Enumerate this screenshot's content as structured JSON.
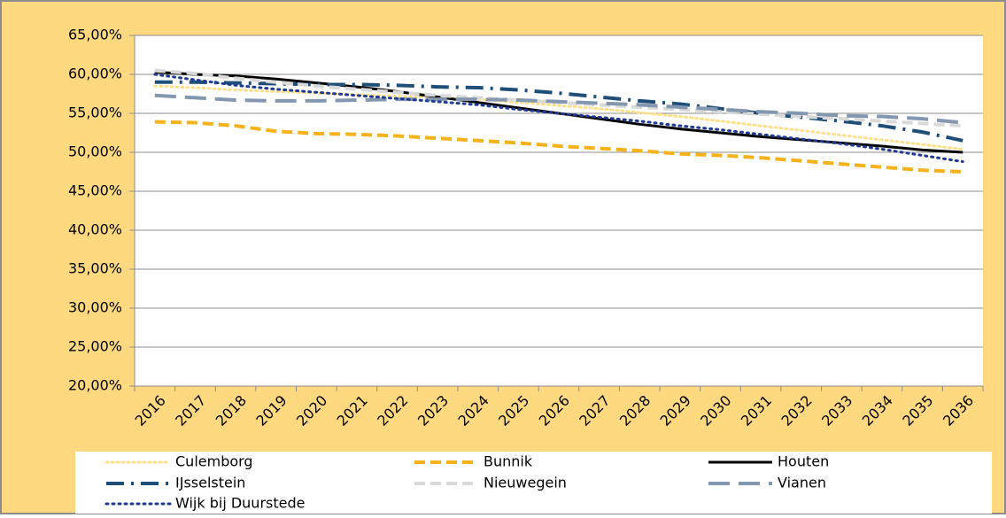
{
  "chart_data": {
    "type": "line",
    "categories": [
      "2016",
      "2017",
      "2018",
      "2019",
      "2020",
      "2021",
      "2022",
      "2023",
      "2024",
      "2025",
      "2026",
      "2027",
      "2028",
      "2029",
      "2030",
      "2031",
      "2032",
      "2033",
      "2034",
      "2035",
      "2036"
    ],
    "ylim": [
      20,
      65
    ],
    "yticks": [
      {
        "value": 20,
        "label": "20,00%"
      },
      {
        "value": 25,
        "label": "25,00%"
      },
      {
        "value": 30,
        "label": "30,00%"
      },
      {
        "value": 35,
        "label": "35,00%"
      },
      {
        "value": 40,
        "label": "40,00%"
      },
      {
        "value": 45,
        "label": "45,00%"
      },
      {
        "value": 50,
        "label": "50,00%"
      },
      {
        "value": 55,
        "label": "55,00%"
      },
      {
        "value": 60,
        "label": "60,00%"
      },
      {
        "value": 65,
        "label": "65,00%"
      }
    ],
    "grid": true,
    "legend": "bottom",
    "series": [
      {
        "name": "Culemborg",
        "color": "#FFE08A",
        "values": [
          58.5,
          58.3,
          58.0,
          57.8,
          57.6,
          57.4,
          57.2,
          57.0,
          56.8,
          56.4,
          56.0,
          55.6,
          55.1,
          54.6,
          54.0,
          53.4,
          52.8,
          52.2,
          51.6,
          51.0,
          50.4
        ]
      },
      {
        "name": "Bunnik",
        "color": "#F5B21B",
        "values": [
          53.9,
          53.8,
          53.4,
          52.7,
          52.4,
          52.3,
          52.1,
          51.8,
          51.5,
          51.2,
          50.8,
          50.5,
          50.2,
          49.8,
          49.6,
          49.3,
          48.9,
          48.5,
          48.1,
          47.7,
          47.5
        ]
      },
      {
        "name": "Houten",
        "color": "#000000",
        "values": [
          60.3,
          60.0,
          59.8,
          59.4,
          58.9,
          58.4,
          57.8,
          57.1,
          56.4,
          55.7,
          55.0,
          54.3,
          53.6,
          53.0,
          52.5,
          52.0,
          51.6,
          51.2,
          50.8,
          50.3,
          50.0
        ]
      },
      {
        "name": "IJsselstein",
        "color": "#1F4E79",
        "values": [
          59.0,
          59.0,
          58.9,
          58.8,
          58.7,
          58.7,
          58.6,
          58.4,
          58.3,
          58.0,
          57.6,
          57.1,
          56.6,
          56.2,
          55.6,
          55.0,
          54.5,
          54.0,
          53.4,
          52.6,
          51.5
        ]
      },
      {
        "name": "Nieuwegein",
        "color": "#D9D9D9",
        "values": [
          60.5,
          60.1,
          59.5,
          59.0,
          58.5,
          58.1,
          57.7,
          57.3,
          57.0,
          56.7,
          56.4,
          56.1,
          55.8,
          55.5,
          55.2,
          54.9,
          54.6,
          54.3,
          54.0,
          53.7,
          53.4
        ]
      },
      {
        "name": "Vianen",
        "color": "#8497B0",
        "values": [
          57.3,
          57.0,
          56.7,
          56.6,
          56.6,
          56.7,
          56.8,
          56.8,
          56.8,
          56.7,
          56.5,
          56.3,
          56.1,
          55.8,
          55.5,
          55.2,
          55.0,
          54.7,
          54.6,
          54.3,
          53.8
        ]
      },
      {
        "name": "Wijk bij Duurstede",
        "color": "#1F3A93",
        "values": [
          60.0,
          59.3,
          58.6,
          58.1,
          57.7,
          57.3,
          56.9,
          56.5,
          56.1,
          55.5,
          55.0,
          54.5,
          54.0,
          53.4,
          52.9,
          52.3,
          51.7,
          51.1,
          50.4,
          49.6,
          48.8
        ]
      }
    ]
  }
}
